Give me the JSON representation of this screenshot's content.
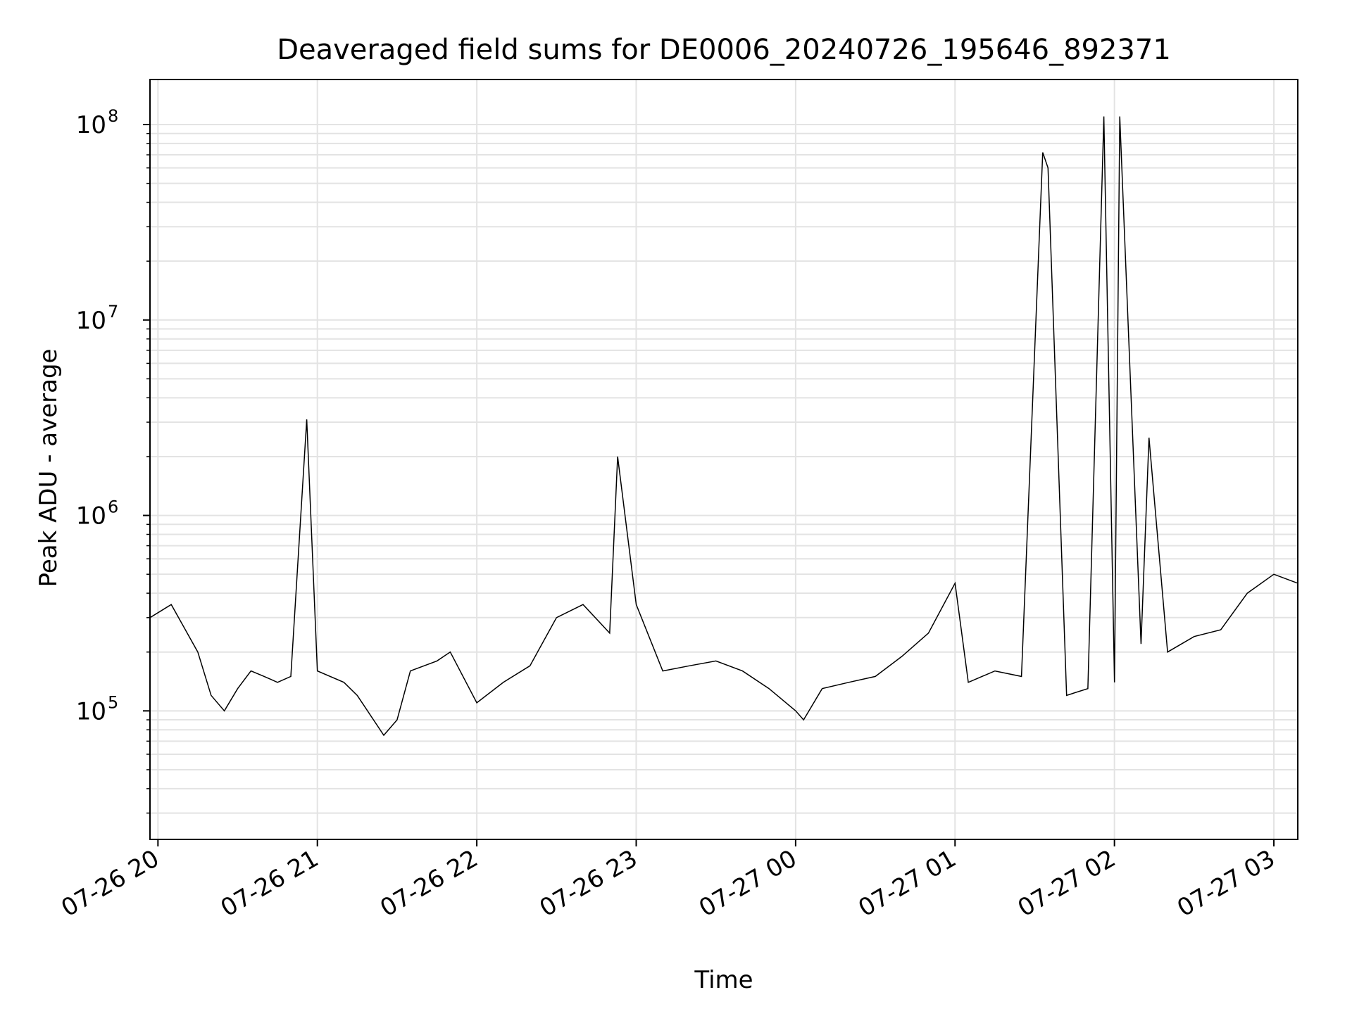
{
  "chart_data": {
    "type": "line",
    "title": "Deaveraged field sums for DE0006_20240726_195646_892371",
    "xlabel": "Time",
    "ylabel": "Peak ADU - average",
    "yscale": "log",
    "xlim": [
      "2024-07-26 19:57",
      "2024-07-27 03:09"
    ],
    "ylim": [
      22000,
      170000000
    ],
    "grid": true,
    "line_color": "#000000",
    "x_tick_labels": [
      "07-26 20",
      "07-26 21",
      "07-26 22",
      "07-26 23",
      "07-27 00",
      "07-27 01",
      "07-27 02",
      "07-27 03"
    ],
    "x_ticks": [
      "2024-07-26 20:00",
      "2024-07-26 21:00",
      "2024-07-26 22:00",
      "2024-07-26 23:00",
      "2024-07-27 00:00",
      "2024-07-27 01:00",
      "2024-07-27 02:00",
      "2024-07-27 03:00"
    ],
    "y_ticks": [
      100000,
      1000000,
      10000000,
      100000000
    ],
    "y_tick_labels": [
      {
        "base": "10",
        "exp": "5"
      },
      {
        "base": "10",
        "exp": "6"
      },
      {
        "base": "10",
        "exp": "7"
      },
      {
        "base": "10",
        "exp": "8"
      }
    ],
    "series": [
      {
        "x": [
          "2024-07-26 19:57",
          "2024-07-26 20:05",
          "2024-07-26 20:15",
          "2024-07-26 20:20",
          "2024-07-26 20:25",
          "2024-07-26 20:30",
          "2024-07-26 20:35",
          "2024-07-26 20:40",
          "2024-07-26 20:45",
          "2024-07-26 20:50",
          "2024-07-26 20:56",
          "2024-07-26 21:00",
          "2024-07-26 21:10",
          "2024-07-26 21:15",
          "2024-07-26 21:25",
          "2024-07-26 21:30",
          "2024-07-26 21:35",
          "2024-07-26 21:45",
          "2024-07-26 21:50",
          "2024-07-26 22:00",
          "2024-07-26 22:10",
          "2024-07-26 22:20",
          "2024-07-26 22:30",
          "2024-07-26 22:40",
          "2024-07-26 22:50",
          "2024-07-26 22:53",
          "2024-07-26 23:00",
          "2024-07-26 23:10",
          "2024-07-26 23:20",
          "2024-07-26 23:30",
          "2024-07-26 23:40",
          "2024-07-26 23:50",
          "2024-07-27 00:00",
          "2024-07-27 00:03",
          "2024-07-27 00:10",
          "2024-07-27 00:20",
          "2024-07-27 00:30",
          "2024-07-27 00:40",
          "2024-07-27 00:50",
          "2024-07-27 01:00",
          "2024-07-27 01:05",
          "2024-07-27 01:15",
          "2024-07-27 01:25",
          "2024-07-27 01:33",
          "2024-07-27 01:35",
          "2024-07-27 01:42",
          "2024-07-27 01:50",
          "2024-07-27 01:56",
          "2024-07-27 02:00",
          "2024-07-27 02:02",
          "2024-07-27 02:10",
          "2024-07-27 02:13",
          "2024-07-27 02:20",
          "2024-07-27 02:30",
          "2024-07-27 02:40",
          "2024-07-27 02:50",
          "2024-07-27 03:00",
          "2024-07-27 03:09"
        ],
        "y": [
          300000,
          350000,
          200000,
          120000,
          100000,
          130000,
          160000,
          150000,
          140000,
          150000,
          3100000,
          160000,
          140000,
          120000,
          75000,
          90000,
          160000,
          180000,
          200000,
          110000,
          140000,
          170000,
          300000,
          350000,
          250000,
          2000000,
          350000,
          160000,
          170000,
          180000,
          160000,
          130000,
          100000,
          90000,
          130000,
          140000,
          150000,
          190000,
          250000,
          450000,
          140000,
          160000,
          150000,
          72000000,
          60000000,
          120000,
          130000,
          110000000,
          140000,
          110000000,
          220000,
          2500000,
          200000,
          240000,
          260000,
          400000,
          500000,
          450000
        ]
      }
    ]
  }
}
